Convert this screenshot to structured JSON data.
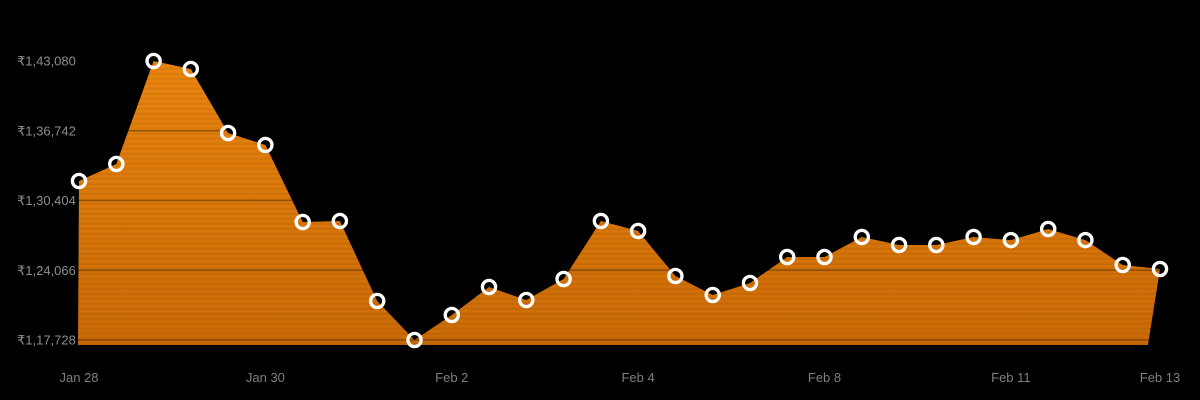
{
  "chart_data": {
    "type": "area",
    "title": "",
    "legend": "none",
    "grid": "horizontal",
    "point_markers": true,
    "currency": "INR",
    "ylim": [
      117728,
      143080
    ],
    "y_ticks": [
      {
        "label": "₹1,43,080",
        "value": 143080
      },
      {
        "label": "₹1,36,742",
        "value": 136742
      },
      {
        "label": "₹1,30,404",
        "value": 130404
      },
      {
        "label": "₹1,24,066",
        "value": 124066
      },
      {
        "label": "₹1,17,728",
        "value": 117728
      }
    ],
    "x_tick_labels": [
      {
        "index": 0,
        "label": "Jan 28"
      },
      {
        "index": 5,
        "label": "Jan 30"
      },
      {
        "index": 10,
        "label": "Feb 2"
      },
      {
        "index": 15,
        "label": "Feb 4"
      },
      {
        "index": 20,
        "label": "Feb 8"
      },
      {
        "index": 25,
        "label": "Feb 11"
      },
      {
        "index": 29,
        "label": "Feb 13"
      }
    ],
    "values": [
      132180,
      133720,
      143080,
      142350,
      136540,
      135450,
      128450,
      128540,
      121270,
      117728,
      120000,
      122540,
      121360,
      123270,
      128540,
      127630,
      123540,
      121820,
      122910,
      125270,
      125270,
      127090,
      126360,
      126360,
      127090,
      126810,
      127810,
      126810,
      124540,
      124180
    ],
    "colors": {
      "background": "#000000",
      "area_top": "#ea850f",
      "area_bottom": "#cc6b06",
      "marker_ring": "#ffffff",
      "grid_overlay_rgba": "rgba(0,0,0,0.32)",
      "y_axis_text": "#8d8d8d",
      "x_axis_text": "#7f7f7f"
    }
  }
}
